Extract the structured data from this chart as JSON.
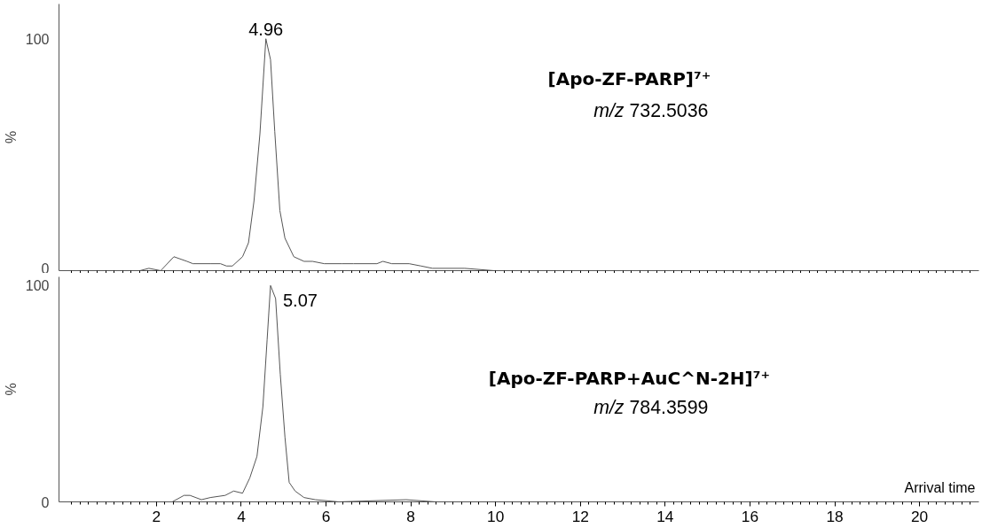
{
  "chart_data": [
    {
      "type": "line",
      "title": "[Apo-ZF-PARP]⁷⁺",
      "subtitle": "m/z 732.5036",
      "ylabel": "%",
      "color": "#555555",
      "xlim": [
        -0.3,
        21.4
      ],
      "ylim": [
        0,
        115
      ],
      "yticks": [
        0,
        100
      ],
      "tick_labels": "y",
      "grid": false,
      "annotations": [
        "4.96"
      ],
      "x": [
        1.61,
        1.82,
        2.1,
        2.41,
        2.72,
        2.86,
        3.27,
        3.51,
        3.65,
        3.79,
        4.03,
        4.17,
        4.3,
        4.44,
        4.58,
        4.69,
        4.79,
        4.91,
        5.03,
        5.24,
        5.48,
        5.68,
        5.96,
        6.37,
        6.65,
        7.2,
        7.34,
        7.55,
        7.96,
        8.24,
        8.51,
        9.27,
        9.96,
        10.6,
        11.2,
        21.3
      ],
      "values": [
        0,
        1,
        0,
        6,
        4,
        3,
        3,
        3,
        2,
        2,
        6,
        12,
        30,
        59,
        100,
        91,
        60,
        26,
        14,
        6,
        4,
        4,
        3,
        3,
        3,
        3,
        4,
        3,
        3,
        2,
        1,
        1,
        0,
        0,
        0,
        0
      ]
    },
    {
      "type": "line",
      "title": "[Apo-ZF-PARP+AuC^N-2H]⁷⁺",
      "subtitle": "m/z 784.3599",
      "ylabel": "%",
      "xlabel": "Arrival time",
      "color": "#555555",
      "xlim": [
        -0.3,
        21.4
      ],
      "ylim": [
        0,
        104
      ],
      "yticks": [
        0,
        100
      ],
      "xticks": [
        2,
        4,
        6,
        8,
        10,
        12,
        14,
        16,
        18,
        20
      ],
      "grid": false,
      "annotations": [
        "5.07"
      ],
      "x": [
        1.61,
        1.82,
        2.37,
        2.65,
        2.79,
        3.06,
        3.27,
        3.62,
        3.82,
        4.03,
        4.2,
        4.37,
        4.51,
        4.61,
        4.69,
        4.81,
        4.92,
        5.03,
        5.13,
        5.27,
        5.48,
        5.75,
        6.3,
        7.89,
        8.58,
        9.4,
        10.3,
        10.8,
        21.3
      ],
      "values": [
        0,
        0,
        0,
        3,
        3,
        1,
        2,
        3,
        5,
        4,
        11,
        21,
        44,
        75,
        100,
        94,
        59,
        30,
        9,
        5,
        2,
        1,
        0,
        1,
        0,
        0,
        0,
        0,
        0
      ]
    }
  ]
}
